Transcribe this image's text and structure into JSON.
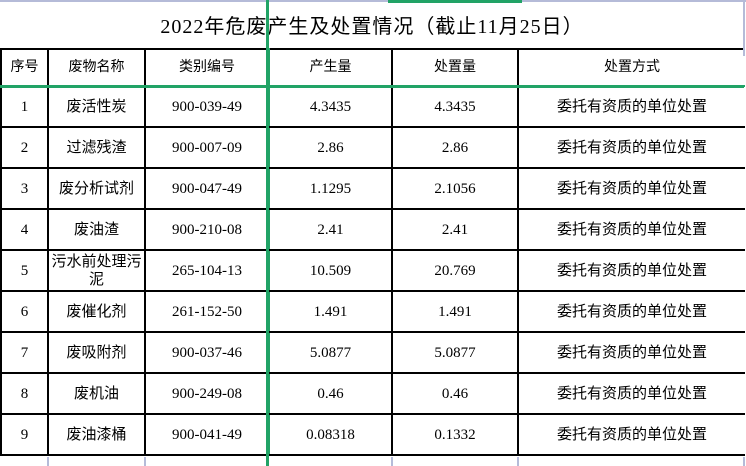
{
  "title": "2022年危废产生及处置情况（截止11月25日）",
  "table": {
    "headers": [
      "序号",
      "废物名称",
      "类别编号",
      "产生量",
      "处置量",
      "处置方式"
    ],
    "header_keys": [
      "index",
      "waste-name",
      "category-code",
      "produced-amount",
      "disposed-amount",
      "disposal-method"
    ],
    "rows": [
      [
        "1",
        "废活性炭",
        "900-039-49",
        "4.3435",
        "4.3435",
        "委托有资质的单位处置"
      ],
      [
        "2",
        "过滤残渣",
        "900-007-09",
        "2.86",
        "2.86",
        "委托有资质的单位处置"
      ],
      [
        "3",
        "废分析试剂",
        "900-047-49",
        "1.1295",
        "2.1056",
        "委托有资质的单位处置"
      ],
      [
        "4",
        "废油渣",
        "900-210-08",
        "2.41",
        "2.41",
        "委托有资质的单位处置"
      ],
      [
        "5",
        "污水前处理污泥",
        "265-104-13",
        "10.509",
        "20.769",
        "委托有资质的单位处置"
      ],
      [
        "6",
        "废催化剂",
        "261-152-50",
        "1.491",
        "1.491",
        "委托有资质的单位处置"
      ],
      [
        "7",
        "废吸附剂",
        "900-037-46",
        "5.0877",
        "5.0877",
        "委托有资质的单位处置"
      ],
      [
        "8",
        "废机油",
        "900-249-08",
        "0.46",
        "0.46",
        "委托有资质的单位处置"
      ],
      [
        "9",
        "废油漆桶",
        "900-041-49",
        "0.08318",
        "0.1332",
        "委托有资质的单位处置"
      ]
    ]
  },
  "colors": {
    "selection_green": "#21a366",
    "sheet_gridline": "#b5bbd8",
    "table_border": "#000000",
    "text": "#000000",
    "background": "#ffffff"
  }
}
